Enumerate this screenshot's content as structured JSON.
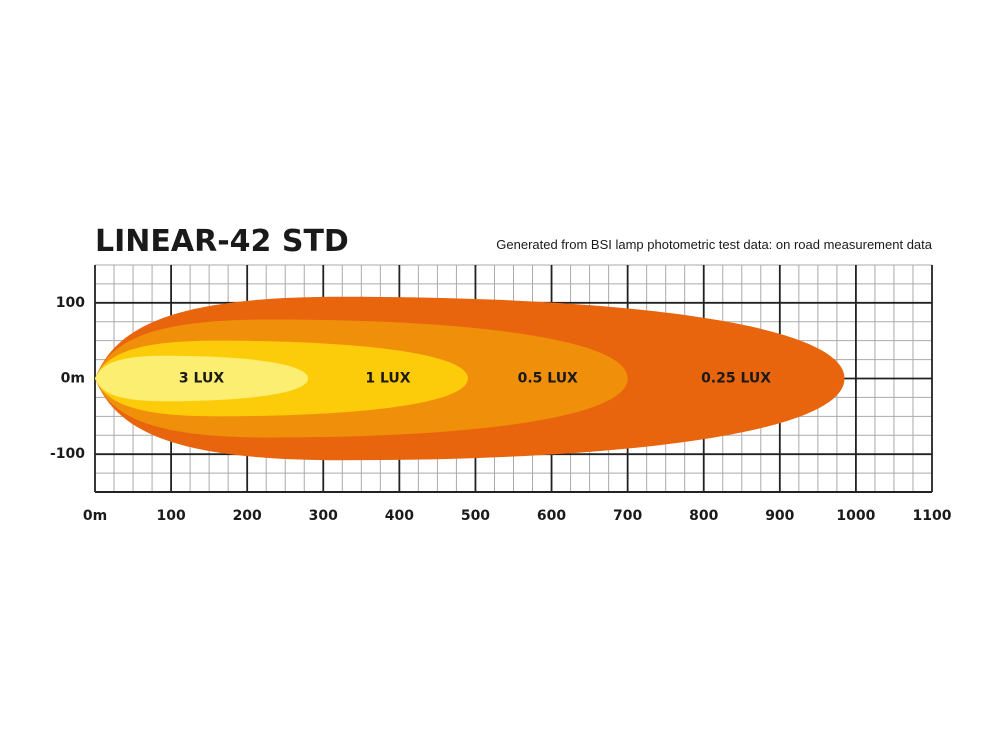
{
  "chart_data": {
    "type": "beam",
    "title": "LINEAR-42 STD",
    "subtitle": "Generated from BSI lamp photometric test data: on road measurement data",
    "xlim": [
      0,
      1100
    ],
    "xticks": [
      {
        "value": 0,
        "label": "0m"
      },
      100,
      200,
      300,
      400,
      500,
      600,
      700,
      800,
      900,
      1000,
      1100
    ],
    "ylim": [
      -150,
      150
    ],
    "yticks": [
      100,
      {
        "value": 0,
        "label": "0m"
      },
      -100
    ],
    "grid": true,
    "grid_step": 25,
    "zones": [
      {
        "name": "0.25 LUX",
        "color": "#e8650e",
        "reach": 985,
        "half_width": 108
      },
      {
        "name": "0.5 LUX",
        "color": "#f0900a",
        "reach": 700,
        "half_width": 78
      },
      {
        "name": "1 LUX",
        "color": "#fccc0a",
        "reach": 490,
        "half_width": 50
      },
      {
        "name": "3 LUX",
        "color": "#fbee70",
        "reach": 280,
        "half_width": 30
      }
    ]
  }
}
